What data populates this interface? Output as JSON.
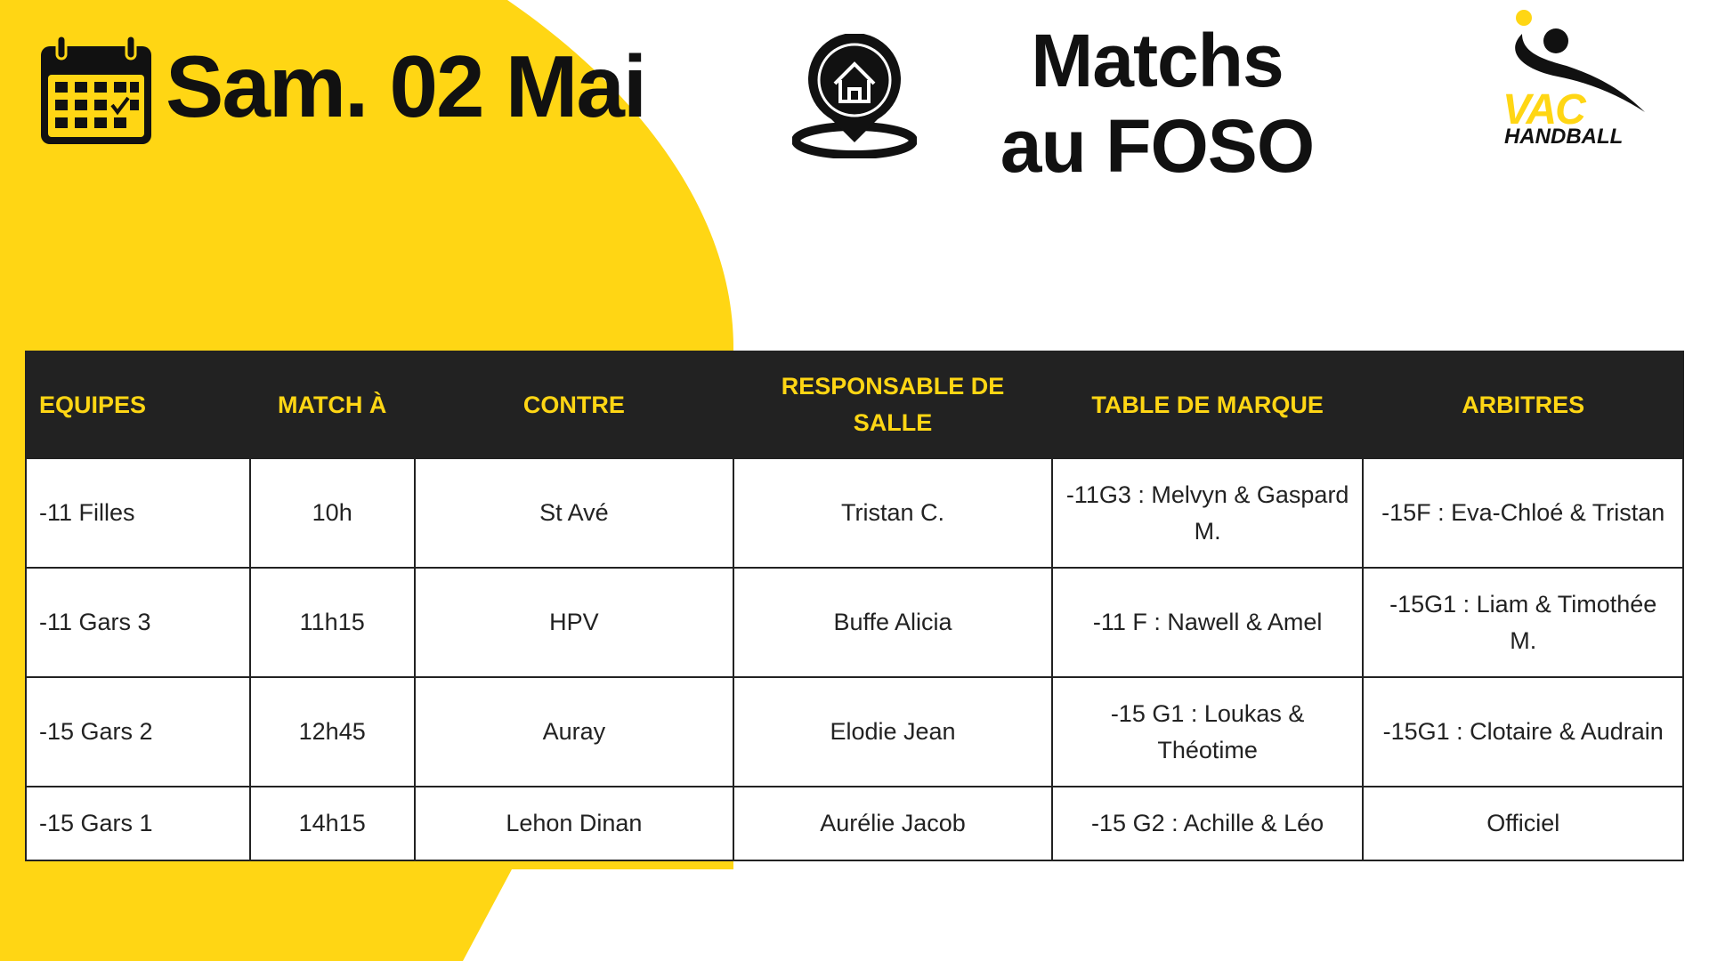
{
  "colors": {
    "accent": "#FFD614",
    "dark": "#222222"
  },
  "header": {
    "date": "Sam. 02 Mai",
    "title_line1": "Matchs",
    "title_line2": "au FOSO",
    "calendar_icon": "calendar-icon",
    "location_icon": "home-location-pin-icon"
  },
  "logo": {
    "text_top": "VAC",
    "text_bottom": "HANDBALL"
  },
  "table": {
    "columns": [
      "EQUIPES",
      "MATCH À",
      "CONTRE",
      "RESPONSABLE DE SALLE",
      "TABLE DE MARQUE",
      "ARBITRES"
    ],
    "rows": [
      [
        "-11 Filles",
        "10h",
        "St Avé",
        "Tristan C.",
        "-11G3 : Melvyn & Gaspard M.",
        "-15F : Eva-Chloé & Tristan"
      ],
      [
        "-11 Gars 3",
        "11h15",
        "HPV",
        "Buffe Alicia",
        "-11 F : Nawell & Amel",
        "-15G1 : Liam & Timothée M."
      ],
      [
        "-15 Gars 2",
        "12h45",
        "Auray",
        "Elodie Jean",
        "-15 G1 : Loukas & Théotime",
        "-15G1 : Clotaire & Audrain"
      ],
      [
        "-15 Gars 1",
        "14h15",
        "Lehon Dinan",
        "Aurélie Jacob",
        "-15 G2 : Achille & Léo",
        "Officiel"
      ]
    ]
  }
}
